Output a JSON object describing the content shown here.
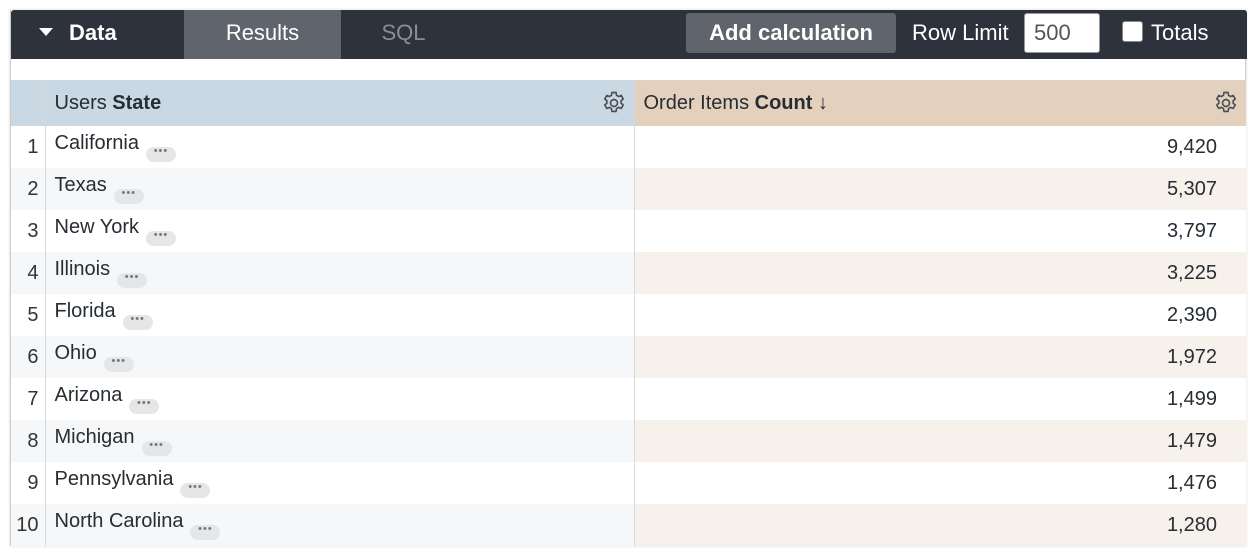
{
  "toolbar": {
    "data_tab": "Data",
    "results_tab": "Results",
    "sql_tab": "SQL",
    "add_calculation": "Add calculation",
    "row_limit_label": "Row Limit",
    "row_limit_value": "500",
    "totals_label": "Totals",
    "totals_checked": false
  },
  "table": {
    "columns": [
      {
        "view": "Users ",
        "field": "State"
      },
      {
        "view": "Order Items ",
        "field": "Count",
        "sort": "↓"
      }
    ],
    "rows": [
      {
        "index": "1",
        "state": "California",
        "count": "9,420"
      },
      {
        "index": "2",
        "state": "Texas",
        "count": "5,307"
      },
      {
        "index": "3",
        "state": "New York",
        "count": "3,797"
      },
      {
        "index": "4",
        "state": "Illinois",
        "count": "3,225"
      },
      {
        "index": "5",
        "state": "Florida",
        "count": "2,390"
      },
      {
        "index": "6",
        "state": "Ohio",
        "count": "1,972"
      },
      {
        "index": "7",
        "state": "Arizona",
        "count": "1,499"
      },
      {
        "index": "8",
        "state": "Michigan",
        "count": "1,479"
      },
      {
        "index": "9",
        "state": "Pennsylvania",
        "count": "1,476"
      },
      {
        "index": "10",
        "state": "North Carolina",
        "count": "1,280"
      }
    ]
  },
  "colors": {
    "toolbar": "#2d323d",
    "dimension_header": "#cad8e4",
    "measure_header": "#e3d1bd"
  }
}
